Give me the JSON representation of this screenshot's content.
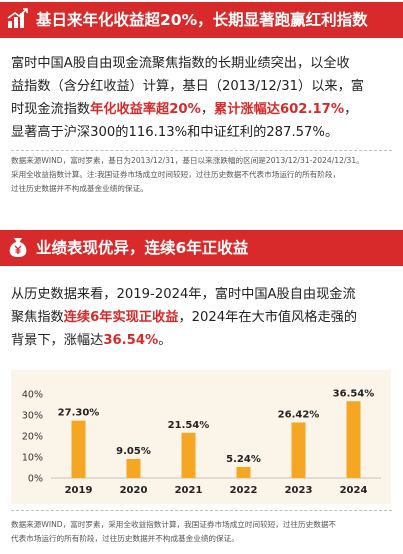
{
  "section1": {
    "title": "基日来年化收益超20%，长期显著跑赢红利指数",
    "icon": "bar-chart-icon",
    "para_lines": [
      [
        {
          "t": "富时中国A股自由现金流聚焦指数的长期业绩突出，以全收",
          "hl": false
        }
      ],
      [
        {
          "t": "益指数（含分红收益）计算，基日（2013/12/31）以来，富",
          "hl": false
        }
      ],
      [
        {
          "t": "时现金流指数",
          "hl": false
        },
        {
          "t": "年化收益率超20%",
          "hl": true
        },
        {
          "t": "，",
          "hl": false
        },
        {
          "t": "累计涨幅达602.17%",
          "hl": true
        },
        {
          "t": "，",
          "hl": false
        }
      ],
      [
        {
          "t": "显著高于沪深300的116.13%和中证红利的287.57%。",
          "hl": false
        }
      ]
    ],
    "note_lines": [
      "数据来源WIND，富时罗素，基日为2013/12/31，基日以来涨跌幅的区间是2013/12/31-2024/12/31。",
      "采用全收益指数计算。注:我国证券市场成立时间较短，过往历史数据不代表市场运行的所有阶段，",
      "过往历史数据并不构成基金业绩的保证。"
    ]
  },
  "section2": {
    "title": "业绩表现优异，连续6年正收益",
    "icon": "yen-money-bag-icon",
    "para_lines": [
      [
        {
          "t": "从历史数据来看，2019-2024年，富时中国A股自由现金流",
          "hl": false
        }
      ],
      [
        {
          "t": "聚焦指数",
          "hl": false
        },
        {
          "t": "连续6年实现正收益",
          "hl": true
        },
        {
          "t": "，2024年在大市值风格走强的",
          "hl": false
        }
      ],
      [
        {
          "t": "背景下，涨幅达",
          "hl": false
        },
        {
          "t": "36.54%",
          "hl": true
        },
        {
          "t": "。",
          "hl": false
        }
      ]
    ],
    "note_lines": [
      "数据来源WIND，富时罗素，采用全收益指数计算，我国证券市场成立时间较短，过往历史数据不",
      "代表市场运行的所有阶段，过往历史数据并不构成基金业绩的保证。"
    ]
  },
  "chart_data": {
    "type": "bar",
    "categories": [
      "2019",
      "2020",
      "2021",
      "2022",
      "2023",
      "2024"
    ],
    "values": [
      27.3,
      9.05,
      21.54,
      5.24,
      26.42,
      36.54
    ],
    "data_labels": [
      "27.30%",
      "9.05%",
      "21.54%",
      "5.24%",
      "26.42%",
      "36.54%"
    ],
    "y_ticks": [
      "40%",
      "30%",
      "20%",
      "10%",
      "0%"
    ],
    "ylim": [
      0,
      40
    ],
    "title": "",
    "xlabel": "",
    "ylabel": "",
    "grid": false,
    "bar_color": "#f5a623",
    "label_color": "#222222",
    "background": "#fbf4e9"
  },
  "colors": {
    "accent": "#d82a2a",
    "bar": "#f5a623"
  }
}
